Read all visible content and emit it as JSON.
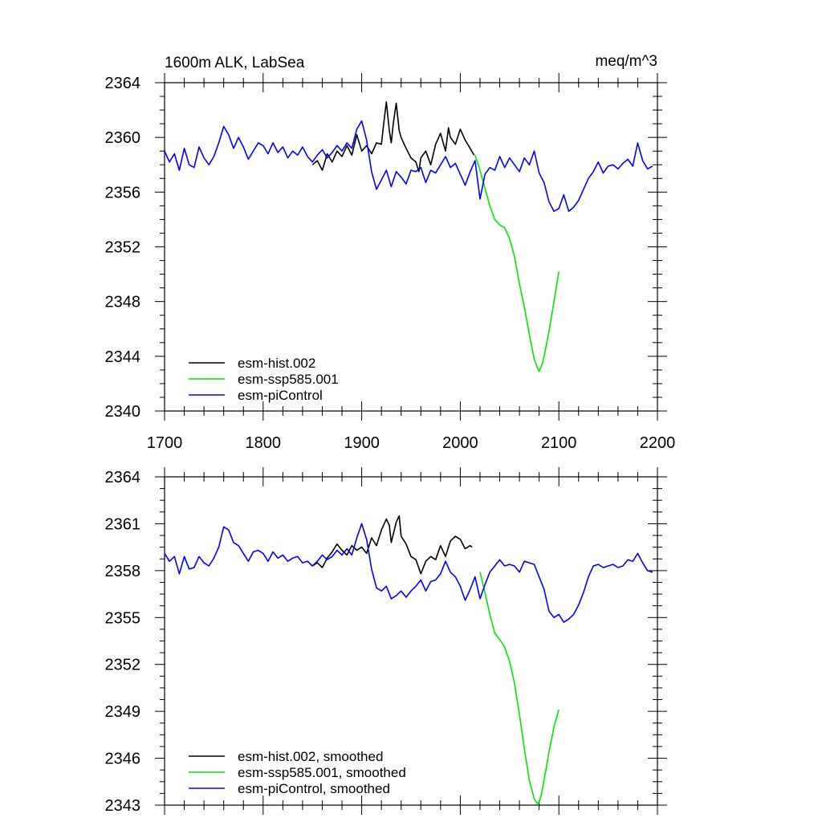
{
  "chart_data": [
    {
      "type": "line",
      "title": "1600m ALK, LabSea",
      "units": "meq/m^3",
      "xlim": [
        1700,
        2200
      ],
      "ylim": [
        2340,
        2364
      ],
      "xticks": [
        1700,
        1800,
        1900,
        2000,
        2100,
        2200
      ],
      "yticks": [
        2340,
        2344,
        2348,
        2352,
        2356,
        2360,
        2364
      ],
      "colors": {
        "hist": "#000000",
        "ssp": "#00e600",
        "pic": "#0000ff"
      },
      "series": [
        {
          "key": "hist",
          "name": "esm-hist.002",
          "color": "#000000",
          "x": [
            1850,
            1855,
            1860,
            1865,
            1870,
            1875,
            1880,
            1885,
            1890,
            1895,
            1900,
            1905,
            1910,
            1915,
            1920,
            1922,
            1925,
            1928,
            1930,
            1932,
            1935,
            1938,
            1940,
            1945,
            1950,
            1955,
            1958,
            1960,
            1965,
            1970,
            1975,
            1980,
            1985,
            1988,
            1990,
            1995,
            2000,
            2005,
            2010,
            2014
          ],
          "y": [
            2358.0,
            2358.3,
            2357.6,
            2358.8,
            2358.2,
            2359.0,
            2358.6,
            2359.4,
            2358.7,
            2360.2,
            2359.0,
            2359.4,
            2358.8,
            2359.6,
            2359.5,
            2360.8,
            2362.6,
            2360.5,
            2359.6,
            2361.0,
            2362.5,
            2360.5,
            2360.0,
            2359.2,
            2358.5,
            2358.2,
            2357.5,
            2358.5,
            2359.0,
            2358.0,
            2359.5,
            2360.3,
            2359.0,
            2360.7,
            2360.0,
            2359.5,
            2360.6,
            2359.8,
            2359.2,
            2358.7
          ]
        },
        {
          "key": "ssp",
          "name": "esm-ssp585.001",
          "color": "#00e600",
          "x": [
            2015,
            2020,
            2025,
            2030,
            2035,
            2040,
            2045,
            2050,
            2055,
            2060,
            2065,
            2070,
            2075,
            2078,
            2080,
            2083,
            2085,
            2090,
            2095,
            2100
          ],
          "y": [
            2358.7,
            2357.6,
            2356.3,
            2355.0,
            2354.0,
            2353.6,
            2353.4,
            2352.6,
            2351.3,
            2349.3,
            2347.6,
            2345.6,
            2343.8,
            2343.2,
            2342.9,
            2343.4,
            2344.0,
            2345.8,
            2348.0,
            2350.2
          ]
        },
        {
          "key": "pic",
          "name": "esm-piControl",
          "color": "#0000ff",
          "x": [
            1700,
            1705,
            1710,
            1715,
            1720,
            1725,
            1730,
            1735,
            1740,
            1745,
            1750,
            1755,
            1760,
            1765,
            1770,
            1775,
            1780,
            1785,
            1790,
            1795,
            1800,
            1805,
            1810,
            1815,
            1820,
            1825,
            1830,
            1835,
            1840,
            1845,
            1850,
            1855,
            1860,
            1865,
            1870,
            1875,
            1880,
            1885,
            1890,
            1895,
            1900,
            1905,
            1910,
            1915,
            1920,
            1925,
            1930,
            1935,
            1940,
            1945,
            1950,
            1955,
            1960,
            1965,
            1970,
            1975,
            1980,
            1985,
            1990,
            1995,
            2000,
            2005,
            2010,
            2015,
            2020,
            2025,
            2030,
            2035,
            2040,
            2045,
            2050,
            2055,
            2060,
            2065,
            2070,
            2075,
            2080,
            2085,
            2090,
            2095,
            2100,
            2105,
            2110,
            2115,
            2120,
            2125,
            2130,
            2135,
            2140,
            2145,
            2150,
            2155,
            2160,
            2165,
            2170,
            2175,
            2180,
            2185,
            2190,
            2195
          ],
          "y": [
            2359.0,
            2358.2,
            2358.8,
            2357.6,
            2359.2,
            2358.0,
            2357.8,
            2359.3,
            2358.5,
            2358.0,
            2358.6,
            2359.6,
            2360.8,
            2360.2,
            2359.2,
            2360.0,
            2359.3,
            2358.4,
            2359.0,
            2359.6,
            2359.4,
            2358.8,
            2359.6,
            2358.9,
            2359.3,
            2358.5,
            2359.0,
            2358.7,
            2359.3,
            2358.6,
            2358.2,
            2358.7,
            2359.1,
            2358.5,
            2358.9,
            2359.4,
            2359.0,
            2359.6,
            2359.2,
            2360.6,
            2361.2,
            2359.8,
            2357.5,
            2356.2,
            2356.9,
            2357.6,
            2356.4,
            2357.5,
            2357.1,
            2356.6,
            2357.6,
            2357.5,
            2357.8,
            2356.7,
            2357.6,
            2357.4,
            2358.0,
            2358.6,
            2357.8,
            2358.1,
            2357.3,
            2356.5,
            2357.5,
            2358.3,
            2355.5,
            2357.3,
            2357.8,
            2357.6,
            2358.6,
            2357.8,
            2358.5,
            2358.0,
            2357.5,
            2358.5,
            2358.0,
            2359.0,
            2357.4,
            2356.7,
            2355.3,
            2354.6,
            2354.8,
            2355.8,
            2354.6,
            2354.9,
            2355.4,
            2356.2,
            2357.0,
            2357.5,
            2358.2,
            2357.4,
            2357.9,
            2358.0,
            2357.7,
            2358.1,
            2358.4,
            2357.9,
            2359.6,
            2358.3,
            2357.7,
            2357.9
          ]
        }
      ],
      "legend": [
        "esm-hist.002",
        "esm-ssp585.001",
        "esm-piControl"
      ],
      "legend_position": "bottom-left"
    },
    {
      "type": "line",
      "title": "",
      "units": "",
      "xlim": [
        1700,
        2200
      ],
      "ylim": [
        2343,
        2364
      ],
      "xticks": [
        1700,
        1800,
        1900,
        2000,
        2100,
        2200
      ],
      "yticks": [
        2343,
        2346,
        2349,
        2352,
        2355,
        2358,
        2361,
        2364
      ],
      "colors": {
        "hist": "#000000",
        "ssp": "#00e600",
        "pic": "#0000ff"
      },
      "series": [
        {
          "key": "hist",
          "name": "esm-hist.002, smoothed",
          "color": "#000000",
          "x": [
            1850,
            1855,
            1860,
            1865,
            1870,
            1875,
            1880,
            1885,
            1890,
            1895,
            1900,
            1905,
            1910,
            1915,
            1920,
            1925,
            1928,
            1930,
            1935,
            1938,
            1940,
            1945,
            1950,
            1955,
            1960,
            1965,
            1970,
            1975,
            1980,
            1985,
            1990,
            1995,
            2000,
            2005,
            2010,
            2012
          ],
          "y": [
            2358.3,
            2358.5,
            2358.2,
            2358.8,
            2359.2,
            2359.7,
            2359.3,
            2359.0,
            2359.6,
            2359.3,
            2359.5,
            2359.1,
            2360.1,
            2359.6,
            2360.6,
            2361.3,
            2360.9,
            2359.8,
            2361.1,
            2361.5,
            2360.2,
            2359.7,
            2358.9,
            2358.7,
            2357.8,
            2358.6,
            2358.9,
            2358.7,
            2359.6,
            2358.9,
            2359.9,
            2360.2,
            2360.0,
            2359.4,
            2359.6,
            2359.5
          ]
        },
        {
          "key": "ssp",
          "name": "esm-ssp585.001, smoothed",
          "color": "#00e600",
          "x": [
            2020,
            2025,
            2030,
            2035,
            2040,
            2045,
            2050,
            2055,
            2060,
            2065,
            2070,
            2075,
            2078,
            2080,
            2082,
            2085,
            2090,
            2095,
            2100
          ],
          "y": [
            2357.9,
            2356.6,
            2355.2,
            2354.0,
            2353.6,
            2353.1,
            2352.2,
            2350.8,
            2348.8,
            2346.6,
            2344.6,
            2343.4,
            2343.1,
            2343.2,
            2343.6,
            2344.6,
            2346.4,
            2348.0,
            2349.1
          ]
        },
        {
          "key": "pic",
          "name": "esm-piControl, smoothed",
          "color": "#0000ff",
          "x": [
            1700,
            1705,
            1710,
            1715,
            1720,
            1725,
            1730,
            1735,
            1740,
            1745,
            1750,
            1755,
            1760,
            1765,
            1770,
            1775,
            1780,
            1785,
            1790,
            1795,
            1800,
            1805,
            1810,
            1815,
            1820,
            1825,
            1830,
            1835,
            1840,
            1845,
            1850,
            1855,
            1860,
            1865,
            1870,
            1875,
            1880,
            1885,
            1890,
            1895,
            1900,
            1905,
            1910,
            1915,
            1920,
            1925,
            1930,
            1935,
            1940,
            1945,
            1950,
            1955,
            1960,
            1965,
            1970,
            1975,
            1980,
            1985,
            1990,
            1995,
            2000,
            2005,
            2010,
            2015,
            2020,
            2025,
            2030,
            2035,
            2040,
            2045,
            2050,
            2055,
            2060,
            2065,
            2070,
            2075,
            2080,
            2085,
            2090,
            2095,
            2100,
            2105,
            2110,
            2115,
            2120,
            2125,
            2130,
            2135,
            2140,
            2145,
            2150,
            2155,
            2160,
            2165,
            2170,
            2175,
            2180,
            2185,
            2190,
            2195
          ],
          "y": [
            2359.1,
            2358.6,
            2358.9,
            2357.8,
            2358.9,
            2358.1,
            2358.2,
            2358.9,
            2358.5,
            2358.3,
            2358.8,
            2359.5,
            2360.8,
            2360.6,
            2359.8,
            2359.6,
            2359.1,
            2358.6,
            2359.2,
            2359.3,
            2359.1,
            2358.6,
            2359.2,
            2358.8,
            2359.0,
            2358.6,
            2358.8,
            2358.9,
            2358.5,
            2358.6,
            2358.3,
            2358.6,
            2359.0,
            2358.7,
            2358.9,
            2359.3,
            2359.0,
            2359.4,
            2359.0,
            2360.1,
            2361.0,
            2360.0,
            2358.1,
            2356.9,
            2356.7,
            2357.0,
            2356.2,
            2356.4,
            2356.7,
            2356.3,
            2356.7,
            2357.0,
            2357.4,
            2356.7,
            2357.3,
            2357.4,
            2357.8,
            2358.6,
            2357.9,
            2357.6,
            2357.0,
            2356.1,
            2356.8,
            2357.6,
            2356.2,
            2357.1,
            2357.9,
            2358.3,
            2358.7,
            2358.3,
            2358.4,
            2358.3,
            2357.9,
            2358.6,
            2358.5,
            2358.4,
            2357.6,
            2356.8,
            2355.4,
            2355.0,
            2355.2,
            2354.7,
            2354.9,
            2355.2,
            2355.8,
            2356.6,
            2357.6,
            2358.3,
            2358.4,
            2358.2,
            2358.3,
            2358.4,
            2358.2,
            2358.3,
            2358.7,
            2358.6,
            2359.1,
            2358.5,
            2358.0,
            2357.9
          ]
        }
      ],
      "legend": [
        "esm-hist.002, smoothed",
        "esm-ssp585.001, smoothed",
        "esm-piControl, smoothed"
      ],
      "legend_position": "bottom-left"
    }
  ]
}
